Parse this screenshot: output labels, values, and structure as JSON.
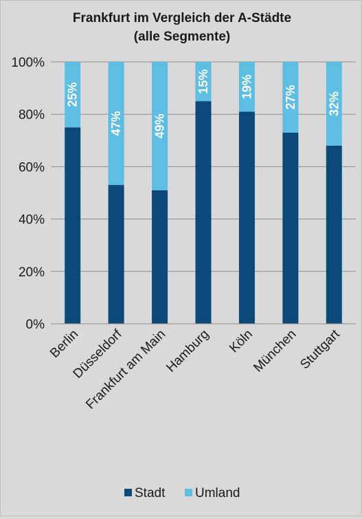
{
  "chart_data": {
    "type": "bar",
    "stacked": true,
    "title": [
      "Frankfurt im Vergleich der A-Städte",
      "(alle Segmente)"
    ],
    "categories": [
      "Berlin",
      "Düsseldorf",
      "Frankfurt am Main",
      "Hamburg",
      "Köln",
      "München",
      "Stuttgart"
    ],
    "series": [
      {
        "name": "Stadt",
        "color": "#0b4a78",
        "values": [
          75,
          53,
          51,
          85,
          81,
          73,
          68
        ]
      },
      {
        "name": "Umland",
        "color": "#5ebde2",
        "values": [
          25,
          47,
          49,
          15,
          19,
          27,
          32
        ]
      }
    ],
    "data_labels": [
      "25%",
      "47%",
      "49%",
      "15%",
      "19%",
      "27%",
      "32%"
    ],
    "yaxis": {
      "ticks": [
        0,
        20,
        40,
        60,
        80,
        100
      ],
      "tick_labels": [
        "0%",
        "20%",
        "40%",
        "60%",
        "80%",
        "100%"
      ],
      "ylim": [
        0,
        100
      ]
    },
    "grid": true,
    "legend_position": "bottom"
  }
}
